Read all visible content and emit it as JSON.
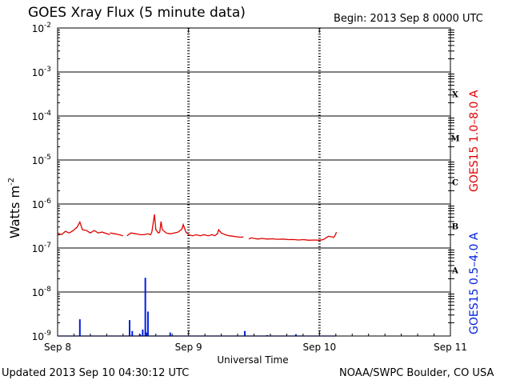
{
  "header": {
    "title": "GOES Xray Flux (5 minute data)",
    "begin": "Begin:  2013 Sep 8 0000 UTC"
  },
  "footer": {
    "updated": "Updated 2013 Sep 10 04:30:12 UTC",
    "credit": "NOAA/SWPC Boulder, CO USA"
  },
  "colors": {
    "long": "#e00000",
    "short": "#0020e0",
    "axis": "#000000"
  },
  "chart_data": {
    "type": "line",
    "xlabel": "Universal Time",
    "ylabel": "Watts m",
    "ylabel_sup": "-2",
    "xlim": [
      0,
      3
    ],
    "ylim_log10": [
      -9,
      -2
    ],
    "log_y": true,
    "grid": true,
    "x_tick_labels": [
      "Sep 8",
      "Sep 9",
      "Sep 10",
      "Sep 11"
    ],
    "y_tick_labels": [
      {
        "exp": -2,
        "base": "10",
        "sup": "-2"
      },
      {
        "exp": -3,
        "base": "10",
        "sup": "-3"
      },
      {
        "exp": -4,
        "base": "10",
        "sup": "-4"
      },
      {
        "exp": -5,
        "base": "10",
        "sup": "-5"
      },
      {
        "exp": -6,
        "base": "10",
        "sup": "-6"
      },
      {
        "exp": -7,
        "base": "10",
        "sup": "-7"
      },
      {
        "exp": -8,
        "base": "10",
        "sup": "-8"
      },
      {
        "exp": -9,
        "base": "10",
        "sup": "-9"
      }
    ],
    "flare_classes": [
      {
        "label": "X",
        "exp": -3.5
      },
      {
        "label": "M",
        "exp": -4.5
      },
      {
        "label": "C",
        "exp": -5.5
      },
      {
        "label": "B",
        "exp": -6.5
      },
      {
        "label": "A",
        "exp": -7.5
      }
    ],
    "series": [
      {
        "name": "GOES15 1.0–8.0 A",
        "color": "#e00000",
        "segments": [
          [
            [
              0.0,
              2.2e-07
            ],
            [
              0.03,
              2e-07
            ],
            [
              0.06,
              2.4e-07
            ],
            [
              0.09,
              2.2e-07
            ],
            [
              0.12,
              2.5e-07
            ],
            [
              0.15,
              3e-07
            ],
            [
              0.17,
              3.9e-07
            ],
            [
              0.19,
              2.6e-07
            ],
            [
              0.22,
              2.5e-07
            ],
            [
              0.25,
              2.2e-07
            ],
            [
              0.28,
              2.5e-07
            ],
            [
              0.31,
              2.2e-07
            ],
            [
              0.34,
              2.3e-07
            ],
            [
              0.38,
              2.1e-07
            ],
            [
              0.4,
              2e-07
            ]
          ],
          [
            [
              0.4,
              2.2e-07
            ],
            [
              0.44,
              2.1e-07
            ],
            [
              0.47,
              2e-07
            ],
            [
              0.5,
              1.9e-07
            ]
          ],
          [
            [
              0.53,
              1.9e-07
            ],
            [
              0.56,
              2.2e-07
            ],
            [
              0.6,
              2.1e-07
            ],
            [
              0.63,
              2e-07
            ],
            [
              0.66,
              2e-07
            ],
            [
              0.69,
              2.1e-07
            ],
            [
              0.71,
              2e-07
            ],
            [
              0.72,
              2.3e-07
            ],
            [
              0.74,
              5.8e-07
            ],
            [
              0.75,
              2.6e-07
            ],
            [
              0.77,
              2.2e-07
            ],
            [
              0.78,
              2.3e-07
            ],
            [
              0.79,
              4e-07
            ],
            [
              0.8,
              2.6e-07
            ],
            [
              0.83,
              2.2e-07
            ],
            [
              0.86,
              2.1e-07
            ],
            [
              0.89,
              2.2e-07
            ],
            [
              0.92,
              2.3e-07
            ],
            [
              0.95,
              2.7e-07
            ],
            [
              0.96,
              3.4e-07
            ],
            [
              0.98,
              2.3e-07
            ],
            [
              1.0,
              2e-07
            ],
            [
              1.03,
              1.9e-07
            ],
            [
              1.06,
              2e-07
            ],
            [
              1.09,
              1.9e-07
            ],
            [
              1.12,
              2e-07
            ],
            [
              1.15,
              1.9e-07
            ],
            [
              1.18,
              2e-07
            ],
            [
              1.2,
              1.9e-07
            ],
            [
              1.22,
              2.1e-07
            ],
            [
              1.23,
              2.6e-07
            ],
            [
              1.25,
              2.2e-07
            ],
            [
              1.28,
              2e-07
            ],
            [
              1.31,
              1.9e-07
            ],
            [
              1.34,
              1.85e-07
            ],
            [
              1.37,
              1.8e-07
            ],
            [
              1.4,
              1.75e-07
            ],
            [
              1.42,
              1.8e-07
            ]
          ],
          [
            [
              1.46,
              1.6e-07
            ],
            [
              1.48,
              1.7e-07
            ],
            [
              1.5,
              1.65e-07
            ],
            [
              1.53,
              1.6e-07
            ],
            [
              1.56,
              1.65e-07
            ],
            [
              1.6,
              1.6e-07
            ],
            [
              1.64,
              1.62e-07
            ],
            [
              1.68,
              1.58e-07
            ],
            [
              1.72,
              1.6e-07
            ],
            [
              1.76,
              1.55e-07
            ],
            [
              1.8,
              1.56e-07
            ],
            [
              1.84,
              1.52e-07
            ],
            [
              1.88,
              1.55e-07
            ],
            [
              1.92,
              1.5e-07
            ],
            [
              1.96,
              1.52e-07
            ],
            [
              2.0,
              1.5e-07
            ],
            [
              2.03,
              1.55e-07
            ],
            [
              2.05,
              1.7e-07
            ],
            [
              2.07,
              1.85e-07
            ],
            [
              2.09,
              1.8e-07
            ],
            [
              2.11,
              1.75e-07
            ],
            [
              2.12,
              1.95e-07
            ],
            [
              2.13,
              2.3e-07
            ]
          ]
        ]
      },
      {
        "name": "GOES15 0.5–4.0 A",
        "color": "#0020e0",
        "baseline": 1e-09,
        "range": [
          0.0,
          2.13
        ],
        "spikes": [
          [
            0.17,
            2.4e-09
          ],
          [
            0.55,
            2.3e-09
          ],
          [
            0.57,
            1.3e-09
          ],
          [
            0.63,
            1.1e-09
          ],
          [
            0.65,
            1.4e-09
          ],
          [
            0.67,
            2.1e-08
          ],
          [
            0.68,
            1.2e-09
          ],
          [
            0.69,
            3.6e-09
          ],
          [
            0.86,
            1.2e-09
          ],
          [
            1.43,
            1.3e-09
          ],
          [
            1.6,
            1.05e-09
          ],
          [
            1.82,
            1.1e-09
          ]
        ]
      }
    ]
  }
}
